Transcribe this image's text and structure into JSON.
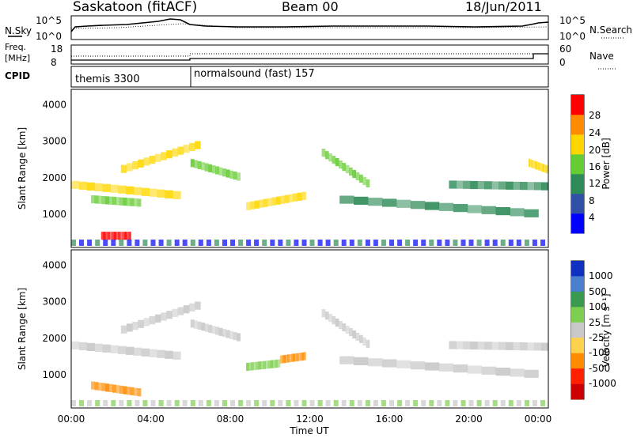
{
  "header": {
    "station": "Saskatoon (fitACF)",
    "beam": "Beam 00",
    "date": "18/Jun/2011"
  },
  "top_panels": {
    "nsky_label": "N.Sky",
    "nsearch_label": "N.Search",
    "noise_left_ticks": [
      "10^5",
      "10^0"
    ],
    "noise_right_ticks": [
      "10^5",
      "10^0"
    ],
    "freq_label_line1": "Freq.",
    "freq_label_line2": "[MHz]",
    "freq_ticks": [
      "18",
      "8"
    ],
    "nave_label": "Nave",
    "nave_ticks": [
      "60",
      "0"
    ],
    "cpid_label": "CPID",
    "cpid_segments": [
      {
        "name": "themis 3300",
        "start_hour": 0,
        "end_hour": 6
      },
      {
        "name": "normalsound (fast) 157",
        "start_hour": 6,
        "end_hour": 24
      }
    ]
  },
  "chart_data": [
    {
      "type": "heatmap",
      "title": "Power",
      "ylabel": "Slant Range [km]",
      "ylim": [
        180,
        4500
      ],
      "yticks": [
        "1000",
        "2000",
        "3000",
        "4000"
      ],
      "colorbar_label": "Power [dB]",
      "colorbar_ticks": [
        "4",
        "8",
        "12",
        "16",
        "20",
        "24",
        "28"
      ],
      "colorbar_colors": [
        "#0000ff",
        "#3050a8",
        "#2e8b57",
        "#66cc33",
        "#ffd700",
        "#ff8c00",
        "#ff0000"
      ],
      "bands": [
        {
          "start": 0.0,
          "end": 5.5,
          "r1": 1900,
          "r2": 1600,
          "level": 4
        },
        {
          "start": 1.0,
          "end": 3.5,
          "r1": 1500,
          "r2": 1400,
          "level": 3
        },
        {
          "start": 1.5,
          "end": 3.0,
          "r1": 500,
          "r2": 500,
          "level": 6
        },
        {
          "start": 2.5,
          "end": 6.5,
          "r1": 2300,
          "r2": 3000,
          "level": 4
        },
        {
          "start": 6.0,
          "end": 8.5,
          "r1": 2500,
          "r2": 2100,
          "level": 3
        },
        {
          "start": 8.8,
          "end": 11.8,
          "r1": 1300,
          "r2": 1600,
          "level": 4
        },
        {
          "start": 12.6,
          "end": 15.0,
          "r1": 2800,
          "r2": 1900,
          "level": 3
        },
        {
          "start": 13.5,
          "end": 23.5,
          "r1": 1500,
          "r2": 1100,
          "level": 2
        },
        {
          "start": 19.0,
          "end": 24.0,
          "r1": 1900,
          "r2": 1850,
          "level": 2
        },
        {
          "start": 23.0,
          "end": 24.0,
          "r1": 2500,
          "r2": 2300,
          "level": 4
        }
      ]
    },
    {
      "type": "heatmap",
      "title": "Velocity",
      "ylabel": "Slant Range [km]",
      "xlabel": "Time UT",
      "ylim": [
        180,
        4500
      ],
      "yticks": [
        "1000",
        "2000",
        "3000",
        "4000"
      ],
      "xticks": [
        "00:00",
        "04:00",
        "08:00",
        "12:00",
        "16:00",
        "20:00",
        "00:00"
      ],
      "colorbar_label": "Velocity [m s⁻¹]",
      "colorbar_ticks": [
        "1000",
        "500",
        "100",
        "25",
        "-25",
        "-100",
        "-500",
        "-1000"
      ],
      "colorbar_colors": [
        "#1030c0",
        "#4a7fd0",
        "#3a9a50",
        "#7ecf50",
        "#c8c8c8",
        "#ffd24d",
        "#ff8c00",
        "#ff2000",
        "#cc0000"
      ],
      "bands": [
        {
          "start": 0.0,
          "end": 5.5,
          "r1": 1900,
          "r2": 1600,
          "level": 4
        },
        {
          "start": 1.0,
          "end": 3.5,
          "r1": 800,
          "r2": 600,
          "level": 6
        },
        {
          "start": 2.5,
          "end": 6.5,
          "r1": 2300,
          "r2": 3000,
          "level": 4
        },
        {
          "start": 6.0,
          "end": 8.5,
          "r1": 2500,
          "r2": 2100,
          "level": 4
        },
        {
          "start": 8.8,
          "end": 10.5,
          "r1": 1300,
          "r2": 1400,
          "level": 3
        },
        {
          "start": 10.5,
          "end": 11.8,
          "r1": 1500,
          "r2": 1600,
          "level": 6
        },
        {
          "start": 12.6,
          "end": 15.0,
          "r1": 2800,
          "r2": 1900,
          "level": 4
        },
        {
          "start": 13.5,
          "end": 23.5,
          "r1": 1500,
          "r2": 1100,
          "level": 4
        },
        {
          "start": 19.0,
          "end": 24.0,
          "r1": 1900,
          "r2": 1850,
          "level": 4
        }
      ]
    }
  ]
}
